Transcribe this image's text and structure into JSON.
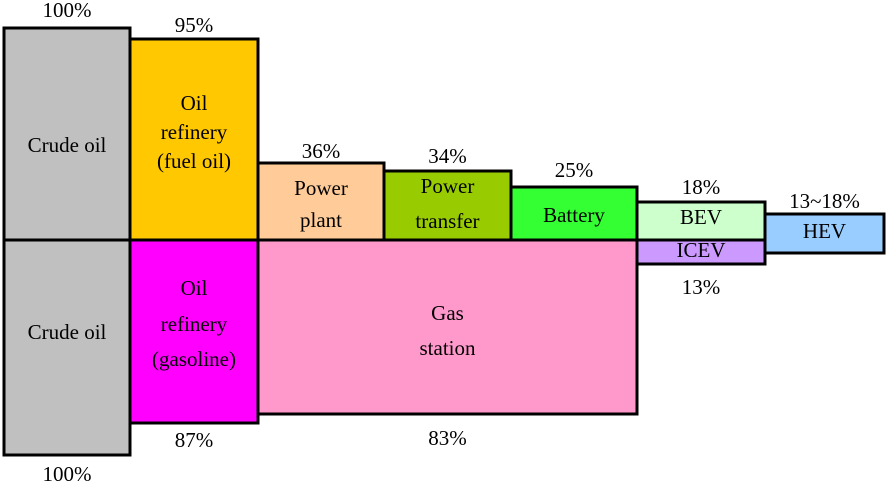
{
  "blocks": [
    {
      "label": [
        "Crude oil"
      ],
      "value": "100%"
    },
    {
      "label": [
        "Oil",
        "refinery",
        "(fuel oil)"
      ],
      "value": "95%"
    },
    {
      "label": [
        "Power",
        "plant"
      ],
      "value": "36%"
    },
    {
      "label": [
        "Power",
        "transfer"
      ],
      "value": "34%"
    },
    {
      "label": [
        "Battery"
      ],
      "value": "25%"
    },
    {
      "label": [
        "BEV"
      ],
      "value": "18%"
    },
    {
      "label": [
        "HEV"
      ],
      "value": "13~18%"
    },
    {
      "label": [
        "Crude oil"
      ],
      "value": "100%"
    },
    {
      "label": [
        "Oil",
        "refinery",
        "(gasoline)"
      ],
      "value": "87%"
    },
    {
      "label": [
        "Gas",
        "station"
      ],
      "value": "83%"
    },
    {
      "label": [
        "ICEV"
      ],
      "value": "13%"
    }
  ]
}
